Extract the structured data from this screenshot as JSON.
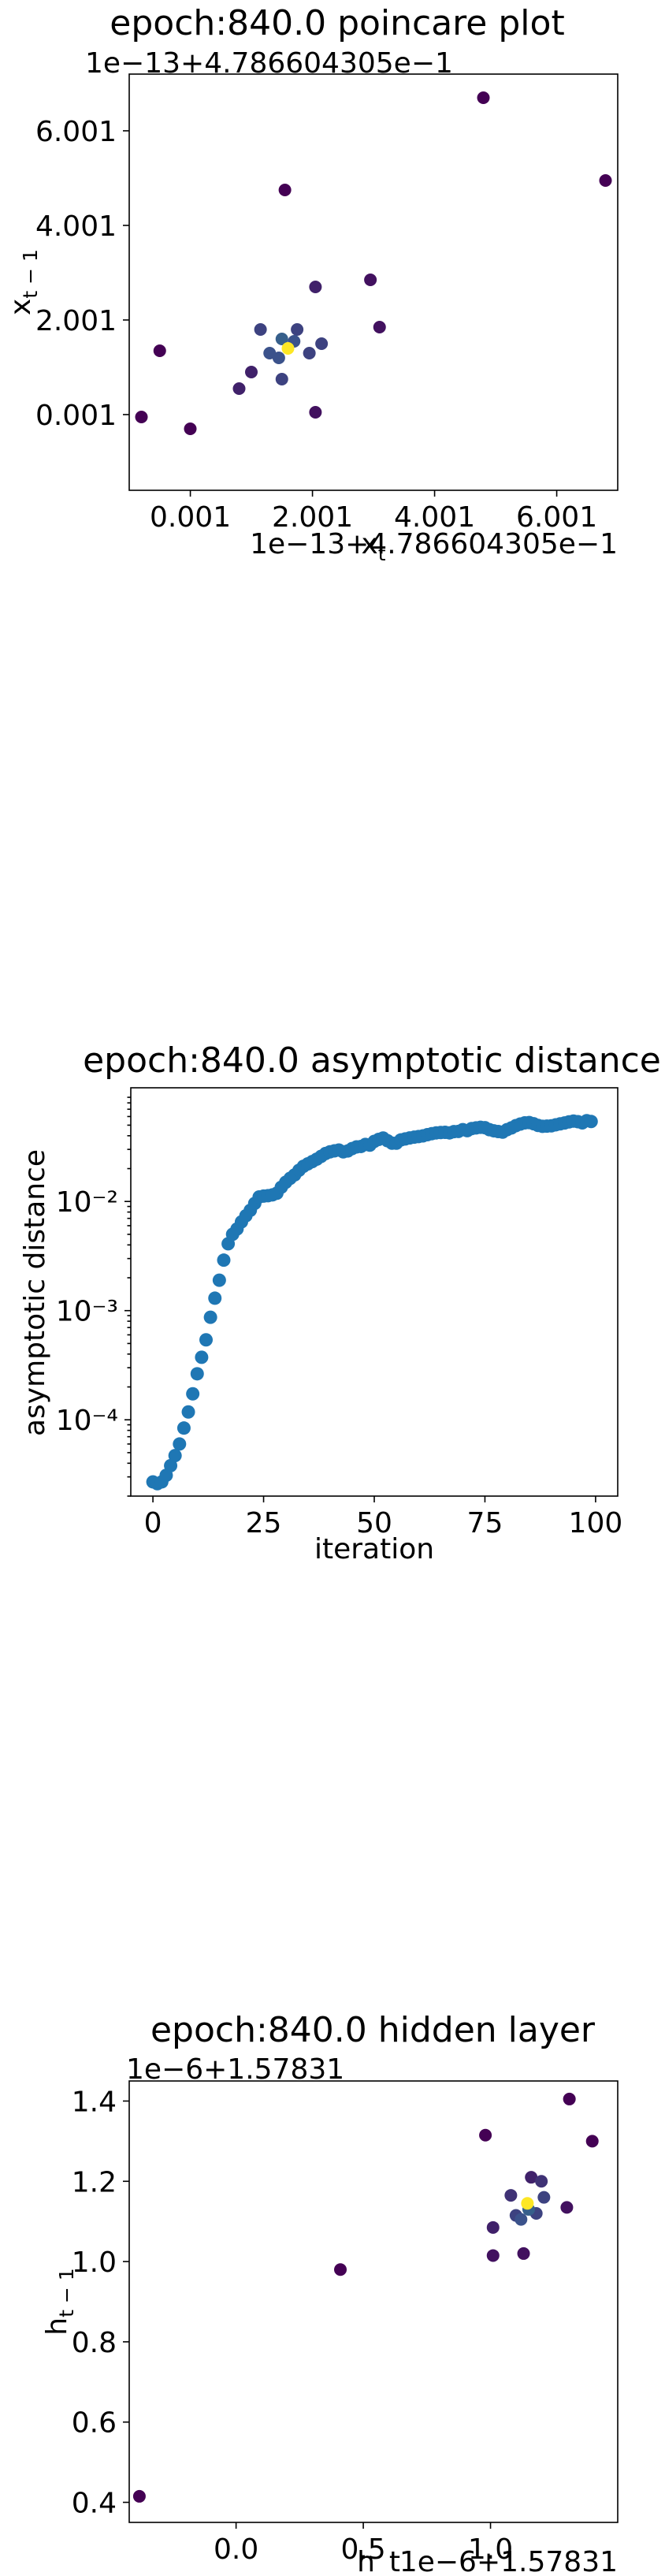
{
  "chart_data": [
    {
      "type": "scatter",
      "title": "epoch:840.0 poincare plot",
      "xlabel": "x_t",
      "ylabel": "x_{t-1}",
      "x_offset_text": "1e−13+4.786604305e−1",
      "y_offset_text": "1e−13+4.786604305e−1",
      "xlim": [
        -1.0,
        7.0
      ],
      "ylim": [
        -1.6,
        7.2
      ],
      "x_ticks": [
        {
          "v": 0.001,
          "label": "0.001"
        },
        {
          "v": 2.001,
          "label": "2.001"
        },
        {
          "v": 4.001,
          "label": "4.001"
        },
        {
          "v": 6.001,
          "label": "6.001"
        }
      ],
      "y_ticks": [
        {
          "v": 0.001,
          "label": "0.001"
        },
        {
          "v": 2.001,
          "label": "2.001"
        },
        {
          "v": 4.001,
          "label": "4.001"
        },
        {
          "v": 6.001,
          "label": "6.001"
        }
      ],
      "colormap": "viridis",
      "points": [
        {
          "x": -0.8,
          "y": -0.05,
          "c": 0.0
        },
        {
          "x": 0.0,
          "y": -0.3,
          "c": 0.0
        },
        {
          "x": -0.5,
          "y": 1.35,
          "c": 0.0
        },
        {
          "x": 4.8,
          "y": 6.7,
          "c": 0.0
        },
        {
          "x": 6.8,
          "y": 4.95,
          "c": 0.0
        },
        {
          "x": 1.55,
          "y": 4.75,
          "c": 0.0
        },
        {
          "x": 2.05,
          "y": 0.05,
          "c": 0.05
        },
        {
          "x": 2.95,
          "y": 2.85,
          "c": 0.05
        },
        {
          "x": 3.1,
          "y": 1.85,
          "c": 0.05
        },
        {
          "x": 2.05,
          "y": 2.7,
          "c": 0.1
        },
        {
          "x": 1.0,
          "y": 0.9,
          "c": 0.1
        },
        {
          "x": 0.8,
          "y": 0.55,
          "c": 0.1
        },
        {
          "x": 1.15,
          "y": 1.8,
          "c": 0.2
        },
        {
          "x": 1.75,
          "y": 1.8,
          "c": 0.2
        },
        {
          "x": 2.15,
          "y": 1.5,
          "c": 0.2
        },
        {
          "x": 1.95,
          "y": 1.3,
          "c": 0.2
        },
        {
          "x": 1.5,
          "y": 0.75,
          "c": 0.2
        },
        {
          "x": 1.3,
          "y": 1.3,
          "c": 0.25
        },
        {
          "x": 1.45,
          "y": 1.2,
          "c": 0.25
        },
        {
          "x": 1.7,
          "y": 1.55,
          "c": 0.25
        },
        {
          "x": 1.5,
          "y": 1.6,
          "c": 0.3
        },
        {
          "x": 1.6,
          "y": 1.4,
          "c": 1.0
        }
      ]
    },
    {
      "type": "scatter",
      "title": "epoch:840.0 asymptotic distance",
      "xlabel": "iteration",
      "ylabel": "asymptotic distance",
      "yscale": "log",
      "xlim": [
        -5,
        105
      ],
      "ylim": [
        2e-05,
        0.11
      ],
      "x_ticks": [
        {
          "v": 0,
          "label": "0"
        },
        {
          "v": 25,
          "label": "25"
        },
        {
          "v": 50,
          "label": "50"
        },
        {
          "v": 75,
          "label": "75"
        },
        {
          "v": 100,
          "label": "100"
        }
      ],
      "y_ticks": [
        {
          "v": 0.01,
          "label": "10⁻²"
        },
        {
          "v": 0.001,
          "label": "10⁻³"
        },
        {
          "v": 0.0001,
          "label": "10⁻⁴"
        }
      ],
      "color": "#1f77b4",
      "x": [
        0,
        1,
        2,
        3,
        4,
        5,
        6,
        7,
        8,
        9,
        10,
        11,
        12,
        13,
        14,
        15,
        16,
        17,
        18,
        19,
        20,
        21,
        22,
        23,
        24,
        25,
        26,
        27,
        28,
        29,
        30,
        31,
        32,
        33,
        34,
        35,
        36,
        37,
        38,
        39,
        40,
        41,
        42,
        43,
        44,
        45,
        46,
        47,
        48,
        49,
        50,
        51,
        52,
        53,
        54,
        55,
        56,
        57,
        58,
        59,
        60,
        61,
        62,
        63,
        64,
        65,
        66,
        67,
        68,
        69,
        70,
        71,
        72,
        73,
        74,
        75,
        76,
        77,
        78,
        79,
        80,
        81,
        82,
        83,
        84,
        85,
        86,
        87,
        88,
        89,
        90,
        91,
        92,
        93,
        94,
        95,
        96,
        97,
        98,
        99
      ],
      "y": [
        2.7e-05,
        2.6e-05,
        2.7e-05,
        3.1e-05,
        3.8e-05,
        4.7e-05,
        6e-05,
        8.4e-05,
        0.000118,
        0.000173,
        0.000264,
        0.000374,
        0.00054,
        0.00087,
        0.0013,
        0.0019,
        0.0029,
        0.0041,
        0.005,
        0.0056,
        0.0065,
        0.0074,
        0.0083,
        0.0096,
        0.011,
        0.0112,
        0.0113,
        0.0115,
        0.0119,
        0.0135,
        0.015,
        0.0163,
        0.0175,
        0.0193,
        0.021,
        0.0221,
        0.0232,
        0.0244,
        0.0259,
        0.0275,
        0.0285,
        0.0291,
        0.0296,
        0.0285,
        0.029,
        0.0305,
        0.0316,
        0.0319,
        0.0333,
        0.0328,
        0.0355,
        0.037,
        0.0381,
        0.036,
        0.0342,
        0.0342,
        0.0366,
        0.0374,
        0.0382,
        0.0388,
        0.0393,
        0.0399,
        0.0409,
        0.0418,
        0.0425,
        0.0428,
        0.043,
        0.0425,
        0.0436,
        0.0438,
        0.0455,
        0.0445,
        0.0465,
        0.0472,
        0.0478,
        0.0474,
        0.0455,
        0.0444,
        0.0437,
        0.0432,
        0.0455,
        0.0472,
        0.0495,
        0.0512,
        0.0525,
        0.0528,
        0.0515,
        0.0497,
        0.0488,
        0.049,
        0.0493,
        0.0504,
        0.0514,
        0.0524,
        0.0536,
        0.0545,
        0.0538,
        0.0525,
        0.055,
        0.054
      ]
    },
    {
      "type": "scatter",
      "title": "epoch:840.0 hidden layer",
      "xlabel": "h_t",
      "ylabel": "h_{t-1}",
      "x_offset_text": "1e−6+1.57831",
      "y_offset_text": "1e−6+1.57831",
      "xlim": [
        -0.42,
        1.5
      ],
      "ylim": [
        0.35,
        1.45
      ],
      "x_ticks": [
        {
          "v": 0.0,
          "label": "0.0"
        },
        {
          "v": 0.5,
          "label": "0.5"
        },
        {
          "v": 1.0,
          "label": "1.0"
        }
      ],
      "y_ticks": [
        {
          "v": 0.4,
          "label": "0.4"
        },
        {
          "v": 0.6,
          "label": "0.6"
        },
        {
          "v": 0.8,
          "label": "0.8"
        },
        {
          "v": 1.0,
          "label": "1.0"
        },
        {
          "v": 1.2,
          "label": "1.2"
        },
        {
          "v": 1.4,
          "label": "1.4"
        }
      ],
      "colormap": "viridis",
      "points": [
        {
          "x": -0.38,
          "y": 0.415,
          "c": 0.0
        },
        {
          "x": 0.41,
          "y": 0.98,
          "c": 0.0
        },
        {
          "x": 0.98,
          "y": 1.315,
          "c": 0.0
        },
        {
          "x": 1.31,
          "y": 1.405,
          "c": 0.0
        },
        {
          "x": 1.4,
          "y": 1.3,
          "c": 0.0
        },
        {
          "x": 1.01,
          "y": 1.015,
          "c": 0.05
        },
        {
          "x": 1.13,
          "y": 1.02,
          "c": 0.05
        },
        {
          "x": 1.3,
          "y": 1.135,
          "c": 0.05
        },
        {
          "x": 1.01,
          "y": 1.085,
          "c": 0.1
        },
        {
          "x": 1.16,
          "y": 1.21,
          "c": 0.1
        },
        {
          "x": 1.08,
          "y": 1.165,
          "c": 0.15
        },
        {
          "x": 1.2,
          "y": 1.2,
          "c": 0.15
        },
        {
          "x": 1.21,
          "y": 1.16,
          "c": 0.2
        },
        {
          "x": 1.1,
          "y": 1.115,
          "c": 0.2
        },
        {
          "x": 1.18,
          "y": 1.12,
          "c": 0.2
        },
        {
          "x": 1.12,
          "y": 1.105,
          "c": 0.25
        },
        {
          "x": 1.15,
          "y": 1.13,
          "c": 0.3
        },
        {
          "x": 1.145,
          "y": 1.145,
          "c": 1.0
        }
      ]
    }
  ]
}
